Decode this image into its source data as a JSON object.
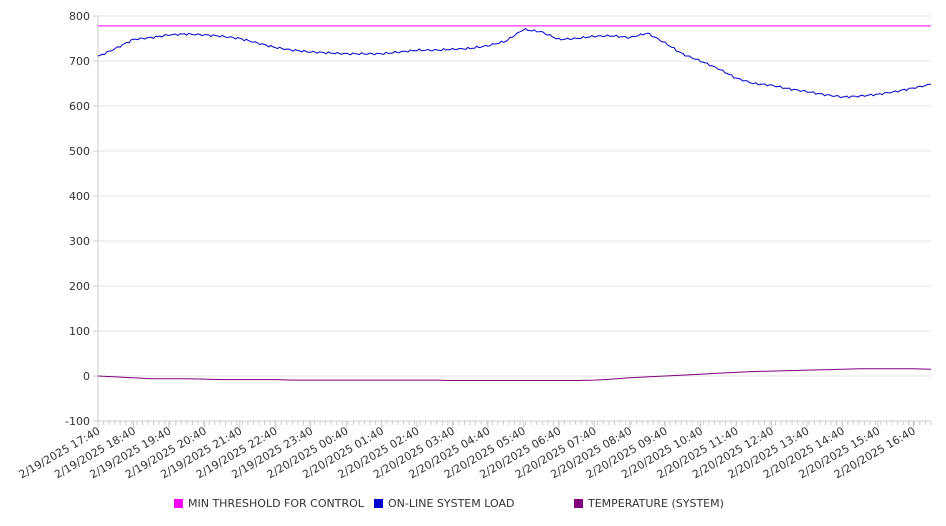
{
  "chart_data": {
    "type": "line",
    "title": "",
    "xlabel": "",
    "ylabel": "",
    "ylim": [
      -100,
      800
    ],
    "yticks": [
      -100,
      0,
      100,
      200,
      300,
      400,
      500,
      600,
      700,
      800
    ],
    "ytick_labels": [
      "-100",
      "0",
      "100",
      "200",
      "300",
      "400",
      "500",
      "600",
      "700",
      "800"
    ],
    "x_tick_labels": [
      "2/19/2025 17:40",
      "2/19/2025 18:40",
      "2/19/2025 19:40",
      "2/19/2025 20:40",
      "2/19/2025 21:40",
      "2/19/2025 22:40",
      "2/19/2025 23:40",
      "2/20/2025 00:40",
      "2/20/2025 01:40",
      "2/20/2025 02:40",
      "2/20/2025 03:40",
      "2/20/2025 04:40",
      "2/20/2025 05:40",
      "2/20/2025 06:40",
      "2/20/2025 07:40",
      "2/20/2025 08:40",
      "2/20/2025 09:40",
      "2/20/2025 10:40",
      "2/20/2025 11:40",
      "2/20/2025 12:40",
      "2/20/2025 13:40",
      "2/20/2025 14:40",
      "2/20/2025 15:40",
      "2/20/2025 16:40"
    ],
    "x": [
      "2/19/2025 17:40",
      "2/19/2025 18:10",
      "2/19/2025 18:40",
      "2/19/2025 19:10",
      "2/19/2025 19:40",
      "2/19/2025 20:10",
      "2/19/2025 20:40",
      "2/19/2025 21:10",
      "2/19/2025 21:40",
      "2/19/2025 22:10",
      "2/19/2025 22:40",
      "2/19/2025 23:10",
      "2/19/2025 23:40",
      "2/20/2025 00:10",
      "2/20/2025 00:40",
      "2/20/2025 01:10",
      "2/20/2025 01:40",
      "2/20/2025 02:10",
      "2/20/2025 02:40",
      "2/20/2025 03:10",
      "2/20/2025 03:40",
      "2/20/2025 04:10",
      "2/20/2025 04:40",
      "2/20/2025 05:10",
      "2/20/2025 05:40",
      "2/20/2025 06:10",
      "2/20/2025 06:40",
      "2/20/2025 07:10",
      "2/20/2025 07:40",
      "2/20/2025 08:10",
      "2/20/2025 08:40",
      "2/20/2025 09:10",
      "2/20/2025 09:40",
      "2/20/2025 10:10",
      "2/20/2025 10:40",
      "2/20/2025 11:10",
      "2/20/2025 11:40",
      "2/20/2025 12:10",
      "2/20/2025 12:40",
      "2/20/2025 13:10",
      "2/20/2025 13:40",
      "2/20/2025 14:10",
      "2/20/2025 14:40",
      "2/20/2025 15:10",
      "2/20/2025 15:40",
      "2/20/2025 16:10",
      "2/20/2025 16:40",
      "2/20/2025 17:00"
    ],
    "series": [
      {
        "name": "MIN THRESHOLD FOR CONTROL",
        "color": "#ff00ff",
        "values": [
          778,
          778,
          778,
          778,
          778,
          778,
          778,
          778,
          778,
          778,
          778,
          778,
          778,
          778,
          778,
          778,
          778,
          778,
          778,
          778,
          778,
          778,
          778,
          778,
          778,
          778,
          778,
          778,
          778,
          778,
          778,
          778,
          778,
          778,
          778,
          778,
          778,
          778,
          778,
          778,
          778,
          778,
          778,
          778,
          778,
          778,
          778,
          778
        ]
      },
      {
        "name": "ON-LINE SYSTEM LOAD",
        "color": "#0000cc",
        "values": [
          710,
          728,
          748,
          752,
          758,
          760,
          758,
          755,
          750,
          740,
          730,
          724,
          720,
          718,
          716,
          716,
          716,
          720,
          724,
          724,
          726,
          728,
          734,
          744,
          770,
          765,
          748,
          750,
          755,
          756,
          752,
          762,
          740,
          715,
          700,
          683,
          662,
          650,
          646,
          638,
          632,
          625,
          620,
          622,
          626,
          632,
          640,
          648
        ]
      },
      {
        "name": "TEMPERATURE (SYSTEM)",
        "color": "#800080",
        "values": [
          0,
          -2,
          -4,
          -6,
          -6,
          -6,
          -7,
          -8,
          -8,
          -8,
          -8,
          -9,
          -9,
          -9,
          -9,
          -9,
          -9,
          -9,
          -9,
          -9,
          -10,
          -10,
          -10,
          -10,
          -10,
          -10,
          -10,
          -10,
          -9,
          -7,
          -4,
          -2,
          0,
          2,
          4,
          6,
          8,
          10,
          11,
          12,
          13,
          14,
          15,
          16,
          16,
          16,
          16,
          15
        ]
      }
    ],
    "grid": true,
    "legend_position": "bottom"
  }
}
